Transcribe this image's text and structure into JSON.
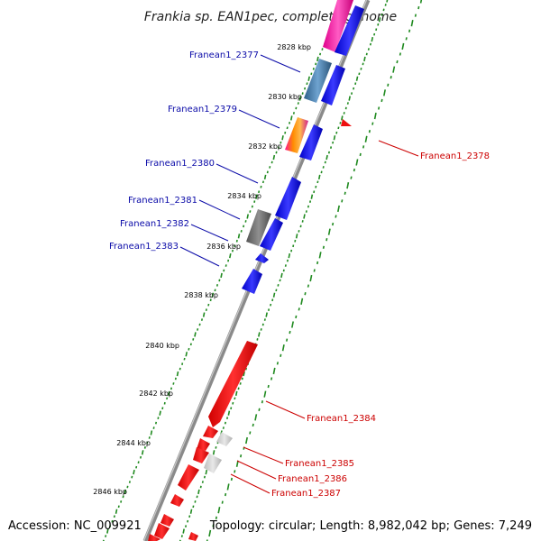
{
  "title": "Frankia sp. EAN1pec, complete genome",
  "footer": {
    "accession": "Accession: NC_009921",
    "topology": "Topology: circular; Length: 8,982,042 bp; Genes: 7,249"
  },
  "ticks": [
    {
      "kbp": 2828,
      "label": "2828 kbp"
    },
    {
      "kbp": 2830,
      "label": "2830 kbp"
    },
    {
      "kbp": 2832,
      "label": "2832 kbp"
    },
    {
      "kbp": 2834,
      "label": "2834 kbp"
    },
    {
      "kbp": 2836,
      "label": "2836 kbp"
    },
    {
      "kbp": 2838,
      "label": "2838 kbp"
    },
    {
      "kbp": 2840,
      "label": "2840 kbp"
    },
    {
      "kbp": 2842,
      "label": "2842 kbp"
    },
    {
      "kbp": 2844,
      "label": "2844 kbp"
    },
    {
      "kbp": 2846,
      "label": "2846 kbp"
    }
  ],
  "gene_labels": [
    {
      "name": "Franean1_2377",
      "strand": "forward"
    },
    {
      "name": "Franean1_2379",
      "strand": "forward"
    },
    {
      "name": "Franean1_2380",
      "strand": "forward"
    },
    {
      "name": "Franean1_2381",
      "strand": "forward"
    },
    {
      "name": "Franean1_2382",
      "strand": "forward"
    },
    {
      "name": "Franean1_2383",
      "strand": "forward"
    },
    {
      "name": "Franean1_2378",
      "strand": "reverse"
    },
    {
      "name": "Franean1_2384",
      "strand": "reverse"
    },
    {
      "name": "Franean1_2385",
      "strand": "reverse"
    },
    {
      "name": "Franean1_2386",
      "strand": "reverse"
    },
    {
      "name": "Franean1_2387",
      "strand": "reverse"
    }
  ],
  "colors": {
    "forward_cds": "#1414e6",
    "reverse_cds": "#ee1010",
    "backbone": "#8a8a8a",
    "gc_dots": "#1f8a1f",
    "forward_label": "#0a0aa8",
    "reverse_label": "#cc0000"
  }
}
